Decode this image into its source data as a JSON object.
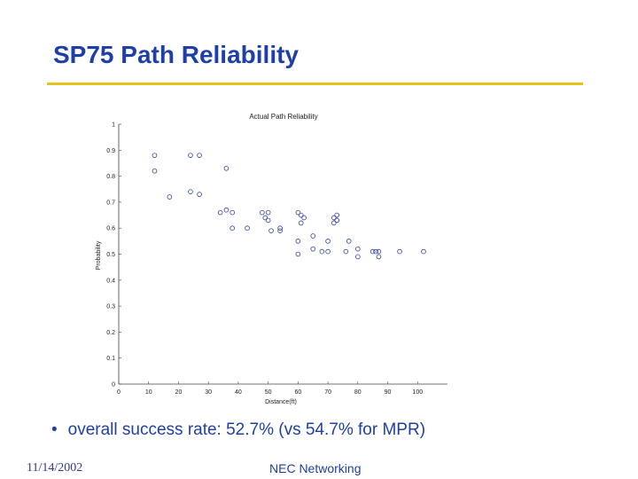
{
  "slide": {
    "title": "SP75 Path Reliability",
    "bullet": "overall success rate: 52.7% (vs 54.7% for MPR)",
    "footer_date": "11/14/2002",
    "footer_center": "NEC Networking"
  },
  "colors": {
    "title": "#1f3fa8",
    "rule": "#e6c21a",
    "marker": "#2f3f9f"
  },
  "chart_data": {
    "type": "scatter",
    "title": "Actual Path Reliability",
    "xlabel": "Distance(ft)",
    "ylabel": "Probability",
    "xlim": [
      0,
      110
    ],
    "ylim": [
      0,
      1
    ],
    "xticks": [
      0,
      10,
      20,
      30,
      40,
      50,
      60,
      70,
      80,
      90,
      100
    ],
    "yticks": [
      0,
      0.1,
      0.2,
      0.3,
      0.4,
      0.5,
      0.6,
      0.7,
      0.8,
      0.9,
      1
    ],
    "grid": false,
    "marker": "open-circle",
    "series": [
      {
        "name": "paths",
        "points": [
          [
            12,
            0.88
          ],
          [
            12,
            0.82
          ],
          [
            17,
            0.72
          ],
          [
            24,
            0.88
          ],
          [
            27,
            0.88
          ],
          [
            24,
            0.74
          ],
          [
            27,
            0.73
          ],
          [
            36,
            0.83
          ],
          [
            34,
            0.66
          ],
          [
            36,
            0.67
          ],
          [
            38,
            0.66
          ],
          [
            38,
            0.6
          ],
          [
            43,
            0.6
          ],
          [
            48,
            0.66
          ],
          [
            49,
            0.64
          ],
          [
            50,
            0.66
          ],
          [
            50,
            0.63
          ],
          [
            51,
            0.59
          ],
          [
            54,
            0.6
          ],
          [
            54,
            0.59
          ],
          [
            60,
            0.66
          ],
          [
            61,
            0.65
          ],
          [
            61,
            0.62
          ],
          [
            62,
            0.64
          ],
          [
            60,
            0.55
          ],
          [
            60,
            0.5
          ],
          [
            65,
            0.57
          ],
          [
            65,
            0.52
          ],
          [
            68,
            0.51
          ],
          [
            70,
            0.51
          ],
          [
            70,
            0.55
          ],
          [
            72,
            0.62
          ],
          [
            72,
            0.64
          ],
          [
            73,
            0.65
          ],
          [
            73,
            0.63
          ],
          [
            76,
            0.51
          ],
          [
            77,
            0.55
          ],
          [
            80,
            0.52
          ],
          [
            80,
            0.49
          ],
          [
            85,
            0.51
          ],
          [
            86,
            0.51
          ],
          [
            87,
            0.49
          ],
          [
            87,
            0.51
          ],
          [
            94,
            0.51
          ],
          [
            102,
            0.51
          ]
        ]
      }
    ]
  }
}
